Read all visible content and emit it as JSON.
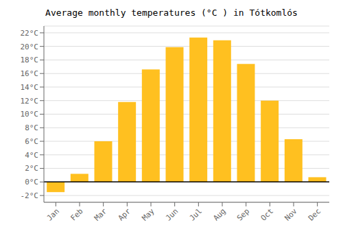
{
  "chart_data": {
    "type": "bar",
    "title": "Average monthly temperatures (°C ) in Tótkomlós",
    "categories": [
      "Jan",
      "Feb",
      "Mar",
      "Apr",
      "May",
      "Jun",
      "Jul",
      "Aug",
      "Sep",
      "Oct",
      "Nov",
      "Dec"
    ],
    "values": [
      -1.5,
      1.2,
      6.0,
      11.8,
      16.6,
      19.9,
      21.3,
      20.9,
      17.4,
      12.0,
      6.3,
      0.7
    ],
    "color": "#FFC020",
    "ylim": [
      -3,
      23
    ],
    "yticks": [
      {
        "value": -2,
        "label": "-2°C"
      },
      {
        "value": 0,
        "label": "0°C"
      },
      {
        "value": 2,
        "label": "2°C"
      },
      {
        "value": 4,
        "label": "4°C"
      },
      {
        "value": 6,
        "label": "6°C"
      },
      {
        "value": 8,
        "label": "8°C"
      },
      {
        "value": 10,
        "label": "10°C"
      },
      {
        "value": 12,
        "label": "12°C"
      },
      {
        "value": 14,
        "label": "14°C"
      },
      {
        "value": 16,
        "label": "16°C"
      },
      {
        "value": 18,
        "label": "18°C"
      },
      {
        "value": 20,
        "label": "20°C"
      },
      {
        "value": 22,
        "label": "22°C"
      }
    ],
    "grid": true
  }
}
